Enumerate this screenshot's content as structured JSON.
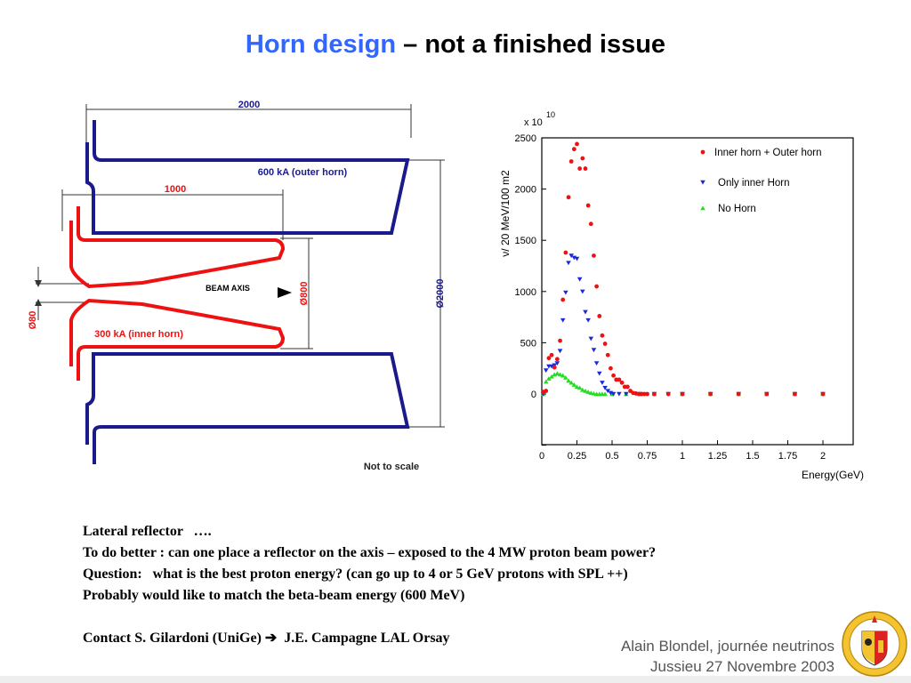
{
  "title": {
    "highlight": "Horn design",
    "rest": " – not a finished issue"
  },
  "diagram": {
    "dim_total_length": "2000",
    "dim_inner_length": "1000",
    "outer_horn_label": "600 kA (outer horn)",
    "inner_horn_label": "300 kA (inner horn)",
    "beam_axis_label": "BEAM AXIS",
    "dim_phi800": "Ø800",
    "dim_phi2000": "Ø2000",
    "dim_phi80": "Ø80",
    "note": "Not to scale",
    "colors": {
      "outer": "#1a1a8c",
      "inner": "#ee1111"
    }
  },
  "chart_data": {
    "type": "scatter",
    "ylabel": "ν/ 20 MeV/100 m2",
    "xlabel": "Energy(GeV)",
    "y_multiplier": "x 10",
    "y_multiplier_exp": "10",
    "xlim": [
      0,
      2
    ],
    "ylim": [
      -500,
      2500
    ],
    "x_ticks": [
      "0",
      "0.25",
      "0.5",
      "0.75",
      "1",
      "1.25",
      "1.5",
      "1.75",
      "2"
    ],
    "y_ticks": [
      "2500",
      "2000",
      "1500",
      "1000",
      "500",
      "0"
    ],
    "series": [
      {
        "name": "Inner horn + Outer horn",
        "color": "#ee1111",
        "marker": "circle",
        "x": [
          0.01,
          0.03,
          0.05,
          0.07,
          0.09,
          0.11,
          0.13,
          0.15,
          0.17,
          0.19,
          0.21,
          0.23,
          0.25,
          0.27,
          0.29,
          0.31,
          0.33,
          0.35,
          0.37,
          0.39,
          0.41,
          0.43,
          0.45,
          0.47,
          0.49,
          0.51,
          0.53,
          0.55,
          0.57,
          0.59,
          0.61,
          0.63,
          0.65,
          0.67,
          0.69,
          0.71,
          0.73,
          0.75,
          0.8,
          0.9,
          1.0,
          1.2,
          1.4,
          1.6,
          1.8,
          2.0
        ],
        "y": [
          20,
          30,
          350,
          380,
          260,
          340,
          520,
          920,
          1380,
          1920,
          2270,
          2390,
          2440,
          2200,
          2300,
          2200,
          1840,
          1660,
          1350,
          1050,
          760,
          570,
          490,
          380,
          250,
          180,
          140,
          140,
          110,
          70,
          70,
          30,
          10,
          5,
          0,
          0,
          0,
          0,
          0,
          0,
          0,
          0,
          0,
          0,
          0,
          0
        ]
      },
      {
        "name": "Only inner Horn",
        "color": "#1a2ad8",
        "marker": "triangle-down",
        "x": [
          0.01,
          0.03,
          0.05,
          0.07,
          0.09,
          0.11,
          0.13,
          0.15,
          0.17,
          0.19,
          0.21,
          0.23,
          0.25,
          0.27,
          0.29,
          0.31,
          0.33,
          0.35,
          0.37,
          0.39,
          0.41,
          0.43,
          0.45,
          0.47,
          0.49,
          0.51,
          0.55,
          0.6,
          0.7,
          0.8,
          0.9,
          1.0,
          1.2,
          1.4,
          1.6,
          1.8,
          2.0
        ],
        "y": [
          0,
          230,
          270,
          270,
          280,
          300,
          420,
          720,
          990,
          1280,
          1350,
          1330,
          1320,
          1120,
          1000,
          800,
          720,
          540,
          430,
          300,
          200,
          110,
          60,
          30,
          10,
          0,
          0,
          0,
          0,
          0,
          0,
          0,
          0,
          0,
          0,
          0,
          0
        ]
      },
      {
        "name": "No Horn",
        "color": "#22dd22",
        "marker": "triangle-up",
        "x": [
          0.01,
          0.03,
          0.05,
          0.07,
          0.09,
          0.11,
          0.13,
          0.15,
          0.17,
          0.19,
          0.21,
          0.23,
          0.25,
          0.27,
          0.29,
          0.31,
          0.33,
          0.35,
          0.37,
          0.39,
          0.41,
          0.43,
          0.45,
          0.5,
          0.6,
          0.7,
          0.8,
          1.0,
          1.2,
          1.4,
          1.6,
          1.8,
          2.0
        ],
        "y": [
          0,
          120,
          150,
          170,
          190,
          200,
          190,
          180,
          160,
          130,
          110,
          90,
          70,
          60,
          40,
          30,
          20,
          10,
          5,
          0,
          0,
          0,
          0,
          0,
          0,
          0,
          0,
          0,
          0,
          0,
          0,
          0,
          0
        ]
      }
    ]
  },
  "notes": {
    "line1": "Lateral reflector   ….",
    "line2": "To do better : can one place a reflector on the axis – exposed to the 4 MW proton beam power?",
    "line3": "Question:   what is the best proton energy? (can go up to 4 or 5 GeV protons with SPL ++)",
    "line4": "Probably would like to match the beta-beam energy (600 MeV)",
    "contact_left": "Contact S. Gilardoni (UniGe)",
    "contact_arrow": "➔",
    "contact_right": "J.E. Campagne LAL Orsay"
  },
  "footer": {
    "line1": "Alain Blondel, journée neutrinos",
    "line2": "Jussieu 27 Novembre 2003"
  },
  "seal": {
    "text": "SCHOLA GENEVENSIS 1559",
    "color": "#ddaa22"
  }
}
